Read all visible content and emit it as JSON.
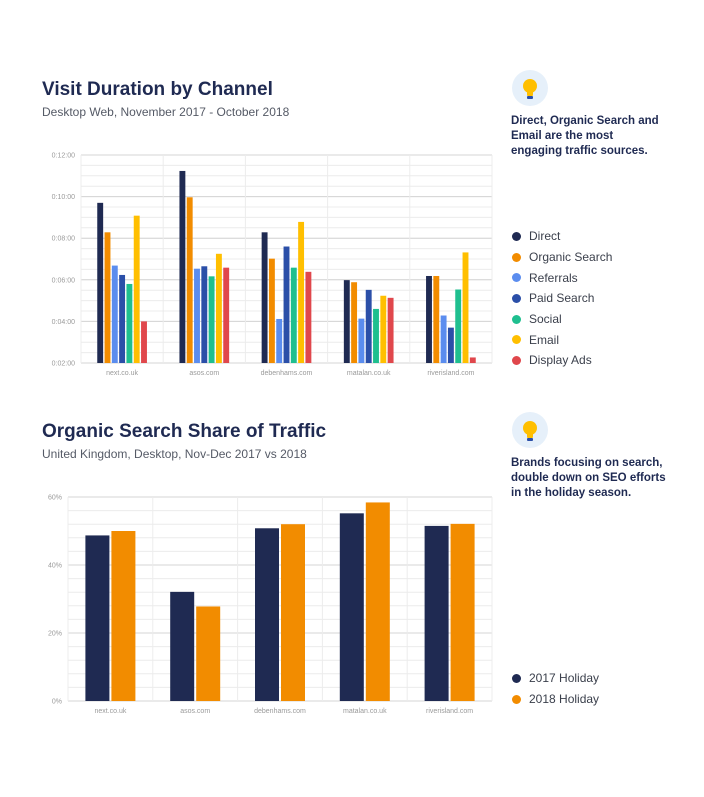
{
  "section1": {
    "title": "Visit Duration by Channel",
    "subtitle": "Desktop Web, November 2017 - October 2018",
    "tip": "Direct, Organic Search and Email are the most engaging traffic sources.",
    "tip_icon": "lightbulb-icon"
  },
  "section2": {
    "title": "Organic Search Share of Traffic",
    "subtitle": "United Kingdom, Desktop, Nov-Dec 2017 vs 2018",
    "tip": "Brands focusing on search, double down on SEO efforts in the holiday season.",
    "tip_icon": "lightbulb-icon"
  },
  "chart_data": [
    {
      "type": "bar",
      "title": "Visit Duration by Channel",
      "subtitle": "Desktop Web, November 2017 - October 2018",
      "categories": [
        "next.co.uk",
        "asos.com",
        "debenhams.com",
        "matalan.co.uk",
        "riverisland.com"
      ],
      "y_unit": "seconds",
      "ylim": [
        120,
        720
      ],
      "yticks": [
        120,
        240,
        360,
        480,
        600,
        720
      ],
      "ytick_labels": [
        "0:02:00",
        "0:04:00",
        "0:06:00",
        "0:08:00",
        "0:10:00",
        "0:12:00"
      ],
      "grid": true,
      "legend_position": "right",
      "series": [
        {
          "name": "Direct",
          "color": "#1f2a52",
          "values": [
            582,
            674,
            497,
            359,
            371
          ]
        },
        {
          "name": "Organic Search",
          "color": "#f28c00",
          "values": [
            497,
            598,
            421,
            353,
            371
          ]
        },
        {
          "name": "Referrals",
          "color": "#5b8def",
          "values": [
            401,
            392,
            247,
            248,
            257
          ]
        },
        {
          "name": "Paid Search",
          "color": "#2b4fa8",
          "values": [
            374,
            399,
            456,
            331,
            222
          ]
        },
        {
          "name": "Social",
          "color": "#1fbf8f",
          "values": [
            348,
            370,
            395,
            276,
            332
          ]
        },
        {
          "name": "Email",
          "color": "#ffbf00",
          "values": [
            545,
            435,
            527,
            314,
            439
          ]
        },
        {
          "name": "Display Ads",
          "color": "#e0474c",
          "values": [
            240,
            395,
            383,
            308,
            136
          ]
        }
      ]
    },
    {
      "type": "bar",
      "title": "Organic Search Share of Traffic",
      "subtitle": "United Kingdom, Desktop, Nov-Dec 2017 vs 2018",
      "categories": [
        "next.co.uk",
        "asos.com",
        "debenhams.com",
        "matalan.co.uk",
        "riverisland.com"
      ],
      "y_unit": "percent",
      "ylim": [
        0,
        60
      ],
      "yticks": [
        0,
        20,
        40,
        60
      ],
      "ytick_labels": [
        "0%",
        "20%",
        "40%",
        "60%"
      ],
      "grid": true,
      "legend_position": "right",
      "series": [
        {
          "name": "2017 Holiday",
          "color": "#1f2a52",
          "values": [
            48.7,
            32.1,
            50.8,
            55.2,
            51.5
          ]
        },
        {
          "name": "2018 Holiday",
          "color": "#f28c00",
          "values": [
            50.0,
            27.8,
            52.0,
            58.4,
            52.1
          ]
        }
      ]
    }
  ]
}
